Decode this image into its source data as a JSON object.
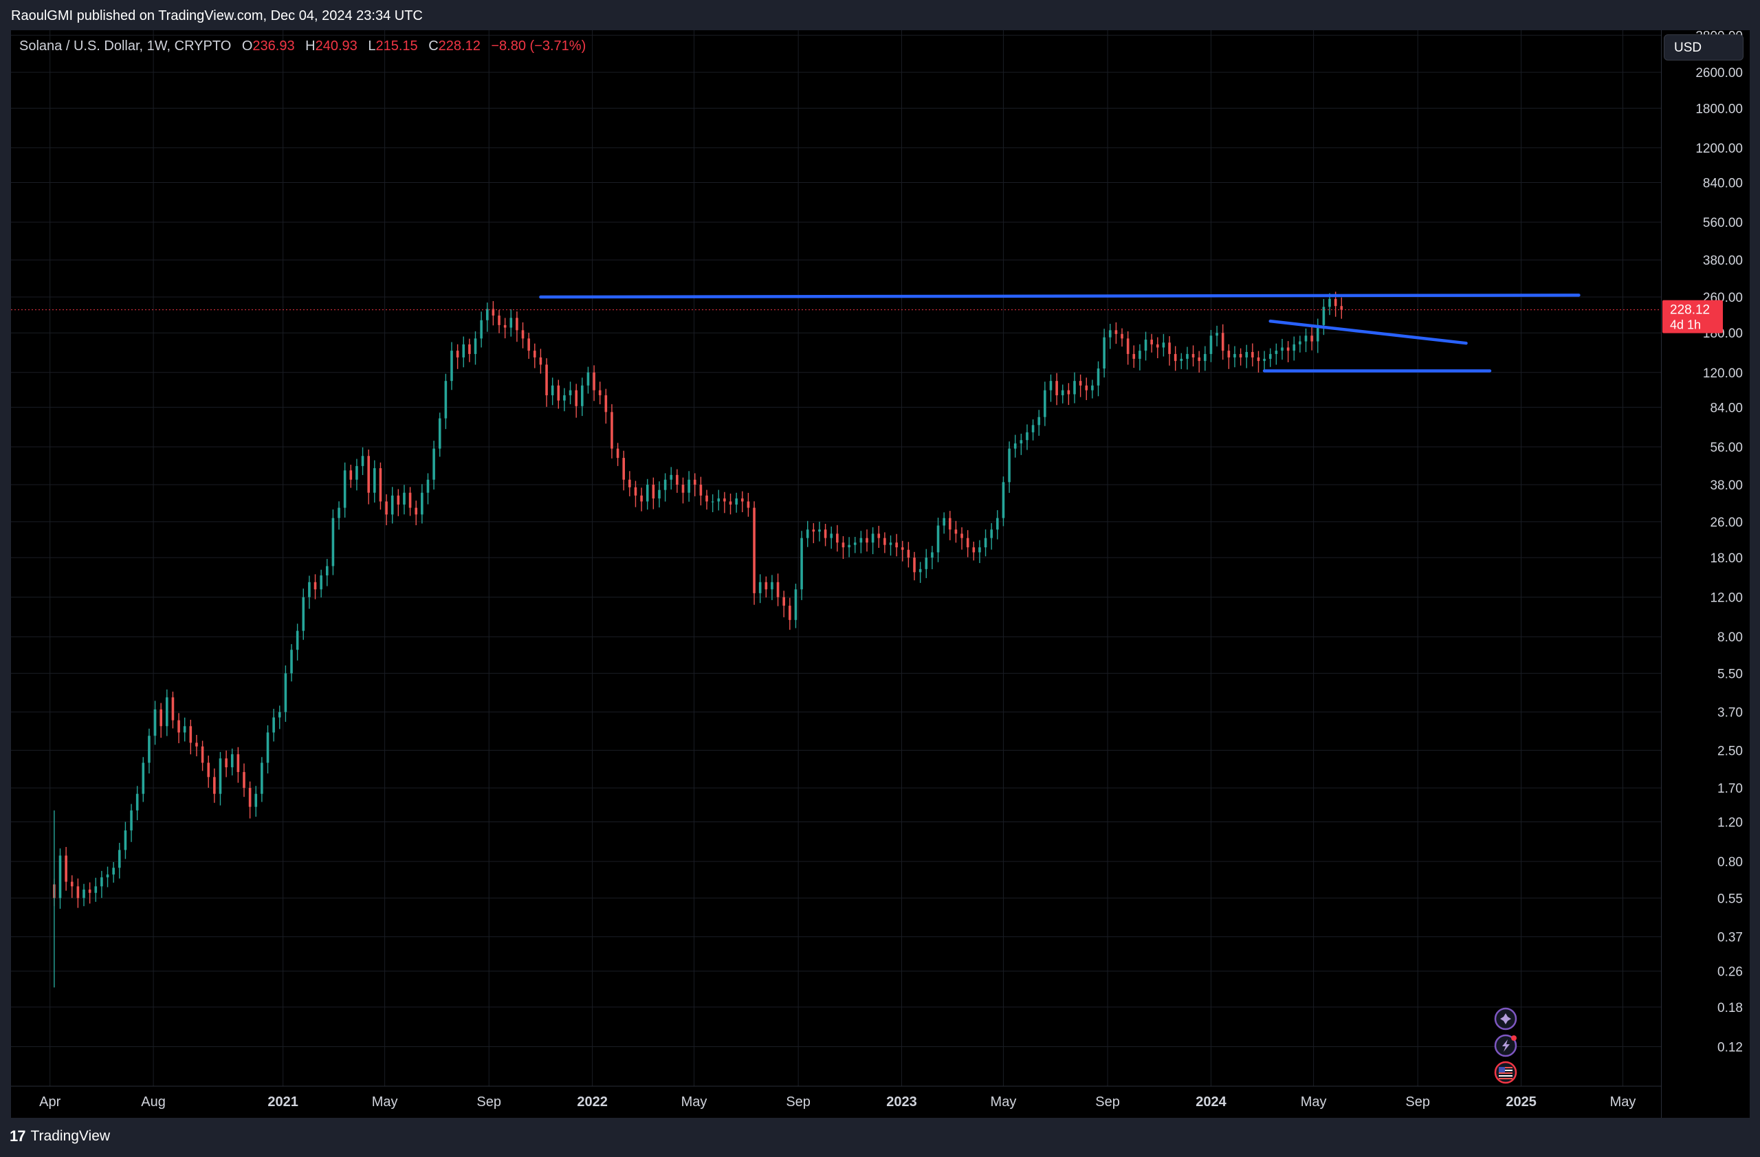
{
  "header": {
    "published": "RaoulGMI published on TradingView.com, Dec 04, 2024 23:34 UTC"
  },
  "legend": {
    "symbol": "Solana / U.S. Dollar, 1W, CRYPTO",
    "o_label": "O",
    "o_value": "236.93",
    "h_label": "H",
    "h_value": "240.93",
    "l_label": "L",
    "l_value": "215.15",
    "c_label": "C",
    "c_value": "228.12",
    "change": "−8.80 (−3.71%)"
  },
  "toolbar": {
    "currency": "USD"
  },
  "footer": {
    "logo_mark": "17",
    "brand": "TradingView"
  },
  "colors": {
    "up": "#26a69a",
    "down": "#ef5350",
    "trendline": "#2962ff",
    "price_label_bg": "#f23645",
    "grid": "#1a1d24",
    "background": "#000000"
  },
  "chart_data": {
    "type": "candlestick",
    "timeframe": "1W",
    "y_scale": "log",
    "ylim": [
      0.08,
      4000
    ],
    "xlim": [
      "2020-02-15",
      "2025-06-15"
    ],
    "grid": true,
    "price_ticks": [
      0.12,
      0.18,
      0.26,
      0.37,
      0.55,
      0.8,
      1.2,
      1.7,
      2.5,
      3.7,
      5.5,
      8.0,
      12.0,
      18.0,
      26.0,
      38.0,
      56.0,
      84.0,
      120.0,
      180.0,
      260.0,
      380.0,
      560.0,
      840.0,
      1200.0,
      1800.0,
      2600.0,
      3800.0
    ],
    "time_ticks": [
      {
        "label": "Apr",
        "date": "2020-04-01",
        "bold": false
      },
      {
        "label": "Aug",
        "date": "2020-08-01",
        "bold": false
      },
      {
        "label": "2021",
        "date": "2021-01-01",
        "bold": true
      },
      {
        "label": "May",
        "date": "2021-05-01",
        "bold": false
      },
      {
        "label": "Sep",
        "date": "2021-09-01",
        "bold": false
      },
      {
        "label": "2022",
        "date": "2022-01-01",
        "bold": true
      },
      {
        "label": "May",
        "date": "2022-05-01",
        "bold": false
      },
      {
        "label": "Sep",
        "date": "2022-09-01",
        "bold": false
      },
      {
        "label": "2023",
        "date": "2023-01-01",
        "bold": true
      },
      {
        "label": "May",
        "date": "2023-05-01",
        "bold": false
      },
      {
        "label": "Sep",
        "date": "2023-09-01",
        "bold": false
      },
      {
        "label": "2024",
        "date": "2024-01-01",
        "bold": true
      },
      {
        "label": "May",
        "date": "2024-05-01",
        "bold": false
      },
      {
        "label": "Sep",
        "date": "2024-09-01",
        "bold": false
      },
      {
        "label": "2025",
        "date": "2025-01-01",
        "bold": true
      },
      {
        "label": "May",
        "date": "2025-05-01",
        "bold": false
      }
    ],
    "start_date": "2020-04-06",
    "closes": [
      0.55,
      0.85,
      0.65,
      0.62,
      0.55,
      0.6,
      0.58,
      0.62,
      0.68,
      0.7,
      0.75,
      0.9,
      1.1,
      1.35,
      1.6,
      2.2,
      2.9,
      3.8,
      3.2,
      4.3,
      3.4,
      3.0,
      3.2,
      2.7,
      2.6,
      2.2,
      1.9,
      1.6,
      2.3,
      2.1,
      2.4,
      2.0,
      1.7,
      1.4,
      1.6,
      2.2,
      3.0,
      3.5,
      3.7,
      5.5,
      7.0,
      8.5,
      12.0,
      14.0,
      13.0,
      15.0,
      16.5,
      27.0,
      30.0,
      44.0,
      40.0,
      46.0,
      51.0,
      35.0,
      45.0,
      32.0,
      28.0,
      34.0,
      31.0,
      35.0,
      30.0,
      28.0,
      35.0,
      40.0,
      55.0,
      75.0,
      110.0,
      150.0,
      140.0,
      160.0,
      145.0,
      170.0,
      205.0,
      230.0,
      215.0,
      195.0,
      190.0,
      210.0,
      185.0,
      170.0,
      150.0,
      140.0,
      130.0,
      95.0,
      105.0,
      90.0,
      95.0,
      100.0,
      85.0,
      105.0,
      120.0,
      100.0,
      95.0,
      80.0,
      55.0,
      50.0,
      40.0,
      37.0,
      34.0,
      32.0,
      38.0,
      33.0,
      36.0,
      40.0,
      42.0,
      38.0,
      35.0,
      40.0,
      38.0,
      34.0,
      32.0,
      32.0,
      33.0,
      32.0,
      31.0,
      33.0,
      32.0,
      30.0,
      12.5,
      14.0,
      13.0,
      14.0,
      12.0,
      11.0,
      9.5,
      13.0,
      22.0,
      24.0,
      23.5,
      24.0,
      22.0,
      23.0,
      21.0,
      20.0,
      20.5,
      21.0,
      22.0,
      21.0,
      23.0,
      22.0,
      20.5,
      21.0,
      20.0,
      19.5,
      18.0,
      15.5,
      16.0,
      18.0,
      19.0,
      25.0,
      27.0,
      24.0,
      23.0,
      22.0,
      20.0,
      19.0,
      20.0,
      22.0,
      24.0,
      27.0,
      39.0,
      55.0,
      58.0,
      60.0,
      65.0,
      70.0,
      76.0,
      100.0,
      110.0,
      95.0,
      100.0,
      96.0,
      110.0,
      105.0,
      100.0,
      105.0,
      125.0,
      172.0,
      185.0,
      178.0,
      170.0,
      145.0,
      138.0,
      150.0,
      168.0,
      160.0,
      155.0,
      163.0,
      145.0,
      135.0,
      138.0,
      145.0,
      140.0,
      135.0,
      145.0,
      175.0,
      180.0,
      150.0,
      140.0,
      145.0,
      140.0,
      148.0,
      140.0,
      135.0,
      138.0,
      145.0,
      150.0,
      155.0,
      150.0,
      160.0,
      165.0,
      175.0,
      165.0,
      195.0,
      235.0,
      255.0,
      237.0,
      228.12
    ],
    "last_price": "228.12",
    "countdown": "4d 1h",
    "trendlines": [
      {
        "name": "resistance",
        "from": [
          "2021-11-01",
          260
        ],
        "to": [
          "2025-03-10",
          265
        ]
      },
      {
        "name": "flag-top",
        "from": [
          "2024-03-11",
          203
        ],
        "to": [
          "2024-10-28",
          162
        ]
      },
      {
        "name": "flag-bottom",
        "from": [
          "2024-03-04",
          122
        ],
        "to": [
          "2024-11-25",
          122
        ]
      }
    ]
  }
}
